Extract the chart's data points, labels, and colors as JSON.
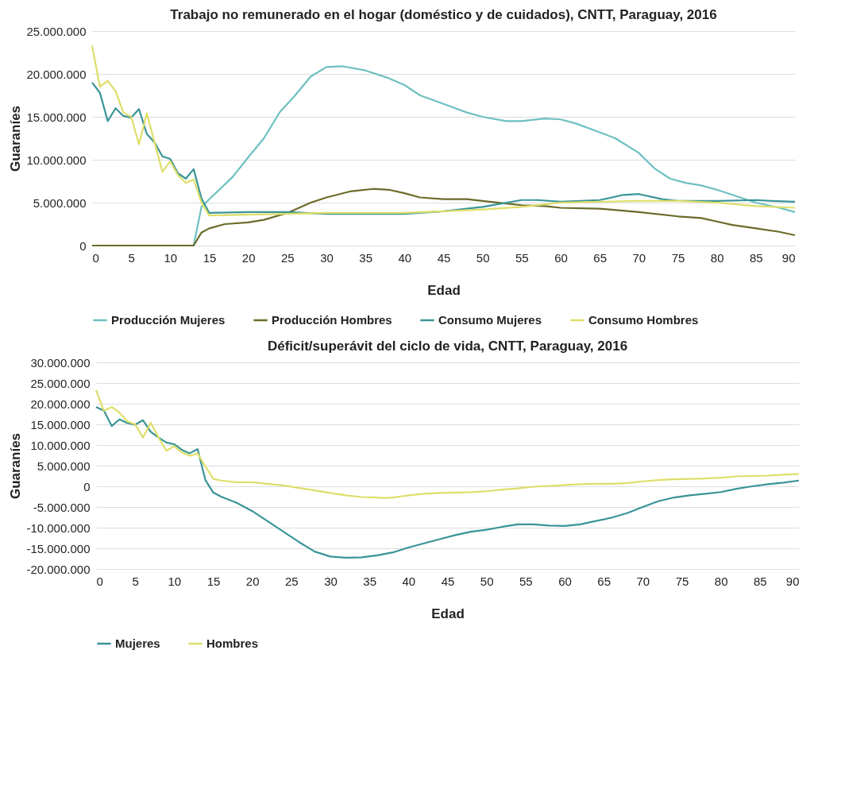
{
  "chart_data": [
    {
      "type": "line",
      "title": "Trabajo no remunerado en el hogar (doméstico y de cuidados), CNTT, Paraguay, 2016",
      "xlabel": "Edad",
      "ylabel": "Guaraníes",
      "legend": "bottom",
      "grid": "y",
      "xlim": [
        0,
        90
      ],
      "xticks": [
        0,
        5,
        10,
        15,
        20,
        25,
        30,
        35,
        40,
        45,
        50,
        55,
        60,
        65,
        70,
        75,
        80,
        85,
        90
      ],
      "ylim": [
        0,
        25000000
      ],
      "yticks": [
        0,
        {
          "value": 5000000,
          "label": "5.000.000"
        },
        {
          "value": 10000000,
          "label": "10.000.000"
        },
        {
          "value": 15000000,
          "label": "15.000.000"
        },
        {
          "value": 20000000,
          "label": "20.000.000"
        },
        {
          "value": 25000000,
          "label": "25.000.000"
        }
      ],
      "series": [
        {
          "name": "Producción Mujeres",
          "color": "#6fc0c0",
          "x": [
            0,
            13,
            14,
            15,
            18,
            20,
            22,
            24,
            26,
            28,
            30,
            32,
            35,
            38,
            40,
            42,
            45,
            48,
            50,
            53,
            55,
            58,
            60,
            62,
            65,
            67,
            70,
            72,
            74,
            76,
            78,
            80,
            82,
            85,
            88,
            90
          ],
          "values": [
            0,
            0,
            4500000,
            5400000,
            8000000,
            10300000,
            12500000,
            15500000,
            17500000,
            19700000,
            20800000,
            20900000,
            20400000,
            19500000,
            18700000,
            17500000,
            16500000,
            15500000,
            15000000,
            14500000,
            14500000,
            14800000,
            14700000,
            14200000,
            13200000,
            12500000,
            10800000,
            9000000,
            7800000,
            7300000,
            7000000,
            6500000,
            5900000,
            5000000,
            4400000,
            3900000
          ]
        },
        {
          "name": "Producción Hombres",
          "color": "#6b6b2a",
          "x": [
            0,
            13,
            14,
            15,
            17,
            20,
            22,
            25,
            28,
            30,
            33,
            36,
            38,
            40,
            42,
            45,
            48,
            50,
            53,
            55,
            58,
            60,
            65,
            70,
            75,
            78,
            80,
            82,
            85,
            88,
            90
          ],
          "values": [
            0,
            0,
            1500000,
            2000000,
            2500000,
            2700000,
            3000000,
            3800000,
            5000000,
            5600000,
            6300000,
            6600000,
            6500000,
            6100000,
            5600000,
            5400000,
            5400000,
            5200000,
            4900000,
            4700000,
            4600000,
            4400000,
            4300000,
            3900000,
            3400000,
            3200000,
            2800000,
            2400000,
            2000000,
            1600000,
            1200000
          ]
        },
        {
          "name": "Consumo Mujeres",
          "color": "#3a9497",
          "x": [
            0,
            1,
            2,
            3,
            4,
            5,
            6,
            7,
            8,
            9,
            10,
            11,
            12,
            13,
            14,
            15,
            20,
            25,
            30,
            40,
            45,
            50,
            55,
            57,
            60,
            65,
            68,
            70,
            73,
            75,
            80,
            85,
            87,
            90
          ],
          "values": [
            19000000,
            17800000,
            14500000,
            16000000,
            15100000,
            14900000,
            15900000,
            13000000,
            12000000,
            10400000,
            10100000,
            8400000,
            7800000,
            8900000,
            5500000,
            3800000,
            3900000,
            3900000,
            3700000,
            3700000,
            4000000,
            4500000,
            5300000,
            5300000,
            5100000,
            5300000,
            5900000,
            6000000,
            5400000,
            5200000,
            5200000,
            5300000,
            5200000,
            5100000
          ]
        },
        {
          "name": "Consumo Hombres",
          "color": "#dede6a",
          "x": [
            0,
            1,
            2,
            3,
            4,
            5,
            6,
            7,
            8,
            9,
            10,
            11,
            12,
            13,
            14,
            15,
            20,
            25,
            30,
            40,
            45,
            50,
            55,
            60,
            65,
            70,
            75,
            80,
            85,
            90
          ],
          "values": [
            23300000,
            18500000,
            19200000,
            18000000,
            15500000,
            15000000,
            11800000,
            15400000,
            12000000,
            8600000,
            9800000,
            8200000,
            7300000,
            7700000,
            5000000,
            3500000,
            3600000,
            3700000,
            3800000,
            3800000,
            4000000,
            4200000,
            4500000,
            5000000,
            5100000,
            5200000,
            5200000,
            5000000,
            4600000,
            4400000
          ]
        }
      ]
    },
    {
      "type": "line",
      "title": "Déficit/superávit del ciclo de vida, CNTT, Paraguay, 2016",
      "xlabel": "Edad",
      "ylabel": "Guaraníes",
      "legend": "bottom",
      "grid": "y",
      "xlim": [
        0,
        90
      ],
      "xticks": [
        0,
        5,
        10,
        15,
        20,
        25,
        30,
        35,
        40,
        45,
        50,
        55,
        60,
        65,
        70,
        75,
        80,
        85,
        90
      ],
      "ylim": [
        -20000000,
        30000000
      ],
      "yticks": [
        {
          "value": -20000000,
          "label": "-20.000.000"
        },
        {
          "value": -15000000,
          "label": "-15.000.000"
        },
        {
          "value": -10000000,
          "label": "-10.000.000"
        },
        {
          "value": -5000000,
          "label": "-5.000.000"
        },
        0,
        {
          "value": 5000000,
          "label": "5.000.000"
        },
        {
          "value": 10000000,
          "label": "10.000.000"
        },
        {
          "value": 15000000,
          "label": "15.000.000"
        },
        {
          "value": 20000000,
          "label": "20.000.000"
        },
        {
          "value": 25000000,
          "label": "25.000.000"
        },
        {
          "value": 30000000,
          "label": "30.000.000"
        }
      ],
      "series": [
        {
          "name": "Mujeres",
          "color": "#3a9497",
          "x": [
            0,
            1,
            2,
            3,
            4,
            5,
            6,
            7,
            8,
            9,
            10,
            11,
            12,
            13,
            14,
            15,
            16,
            18,
            20,
            22,
            24,
            26,
            28,
            30,
            32,
            34,
            36,
            38,
            40,
            42,
            44,
            46,
            48,
            50,
            52,
            54,
            56,
            58,
            60,
            62,
            64,
            66,
            68,
            70,
            72,
            74,
            76,
            78,
            80,
            82,
            84,
            86,
            88,
            90
          ],
          "values": [
            19200000,
            18300000,
            14600000,
            16200000,
            15300000,
            14900000,
            16000000,
            13200000,
            11800000,
            10600000,
            10200000,
            8800000,
            8000000,
            9000000,
            1500000,
            -1500000,
            -2500000,
            -4000000,
            -6000000,
            -8500000,
            -11000000,
            -13500000,
            -15800000,
            -17000000,
            -17300000,
            -17200000,
            -16700000,
            -16000000,
            -14800000,
            -13800000,
            -12800000,
            -11800000,
            -11000000,
            -10500000,
            -9800000,
            -9200000,
            -9200000,
            -9500000,
            -9600000,
            -9200000,
            -8400000,
            -7600000,
            -6500000,
            -5000000,
            -3600000,
            -2700000,
            -2200000,
            -1800000,
            -1400000,
            -600000,
            0,
            500000,
            900000,
            1400000
          ]
        },
        {
          "name": "Hombres",
          "color": "#dede6a",
          "x": [
            0,
            1,
            2,
            3,
            4,
            5,
            6,
            7,
            8,
            9,
            10,
            11,
            12,
            13,
            14,
            15,
            16,
            18,
            20,
            22,
            24,
            26,
            28,
            30,
            32,
            34,
            36,
            37,
            38,
            40,
            42,
            44,
            46,
            48,
            50,
            52,
            54,
            56,
            58,
            60,
            62,
            64,
            66,
            68,
            70,
            72,
            74,
            76,
            78,
            80,
            82,
            84,
            86,
            88,
            90
          ],
          "values": [
            23300000,
            18300000,
            19200000,
            17800000,
            15700000,
            15000000,
            11800000,
            15400000,
            11800000,
            8600000,
            9700000,
            8200000,
            7400000,
            7900000,
            4800000,
            1800000,
            1400000,
            1000000,
            1000000,
            600000,
            200000,
            -400000,
            -1000000,
            -1600000,
            -2200000,
            -2600000,
            -2700000,
            -2800000,
            -2700000,
            -2200000,
            -1800000,
            -1600000,
            -1500000,
            -1400000,
            -1200000,
            -800000,
            -500000,
            -100000,
            100000,
            300000,
            500000,
            600000,
            600000,
            800000,
            1200000,
            1500000,
            1700000,
            1800000,
            1900000,
            2100000,
            2400000,
            2500000,
            2600000,
            2800000,
            3000000
          ]
        }
      ]
    }
  ]
}
